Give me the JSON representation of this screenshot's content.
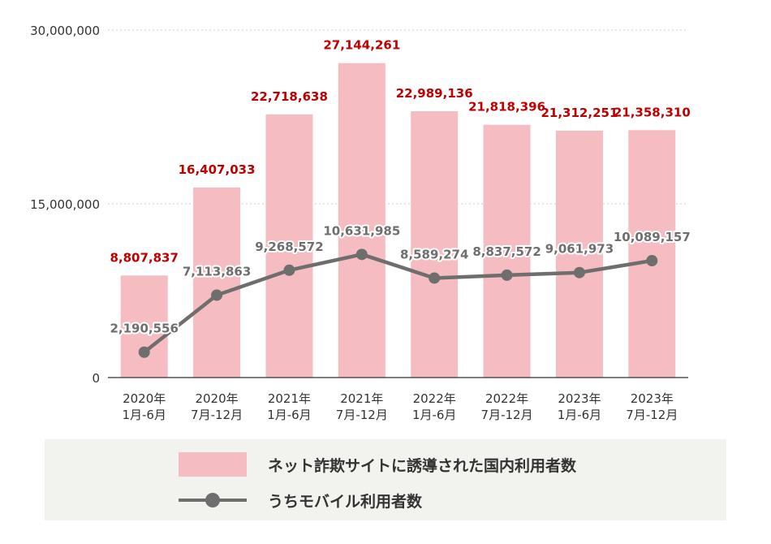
{
  "chart_data": {
    "type": "bar+line",
    "title": "",
    "categories": [
      [
        "2020年",
        "1月-6月"
      ],
      [
        "2020年",
        "7月-12月"
      ],
      [
        "2021年",
        "1月-6月"
      ],
      [
        "2021年",
        "7月-12月"
      ],
      [
        "2022年",
        "1月-6月"
      ],
      [
        "2022年",
        "7月-12月"
      ],
      [
        "2023年",
        "1月-6月"
      ],
      [
        "2023年",
        "7月-12月"
      ]
    ],
    "series": [
      {
        "name": "ネット詐欺サイトに誘導された国内利用者数",
        "type": "bar",
        "values": [
          8807837,
          16407033,
          22718638,
          27144261,
          22989136,
          21818396,
          21312251,
          21358310
        ],
        "labels": [
          "8,807,837",
          "16,407,033",
          "22,718,638",
          "27,144,261",
          "22,989,136",
          "21,818,396",
          "21,312,251",
          "21,358,310"
        ]
      },
      {
        "name": "うちモバイル利用者数",
        "type": "line",
        "values": [
          2190556,
          7113863,
          9268572,
          10631985,
          8589274,
          8837572,
          9061973,
          10089157
        ],
        "labels": [
          "2,190,556",
          "7,113,863",
          "9,268,572",
          "10,631,985",
          "8,589,274",
          "8,837,572",
          "9,061,973",
          "10,089,157"
        ]
      }
    ],
    "y_ticks": [
      {
        "value": 0,
        "label": "0"
      },
      {
        "value": 15000000,
        "label": "15,000,000"
      },
      {
        "value": 30000000,
        "label": "30,000,000"
      }
    ],
    "ylim": [
      0,
      30000000
    ],
    "grid": true,
    "xlabel": "",
    "ylabel": "",
    "colors": {
      "bar": "#f5bcc2",
      "bar_label": "#c00000",
      "line": "#6e6e6e",
      "line_label": "#6e6e6e",
      "axis": "#333333",
      "grid": "#cccccc"
    }
  },
  "legend": {
    "bar_label": "ネット詐欺サイトに誘導された国内利用者数",
    "line_label": "うちモバイル利用者数"
  }
}
